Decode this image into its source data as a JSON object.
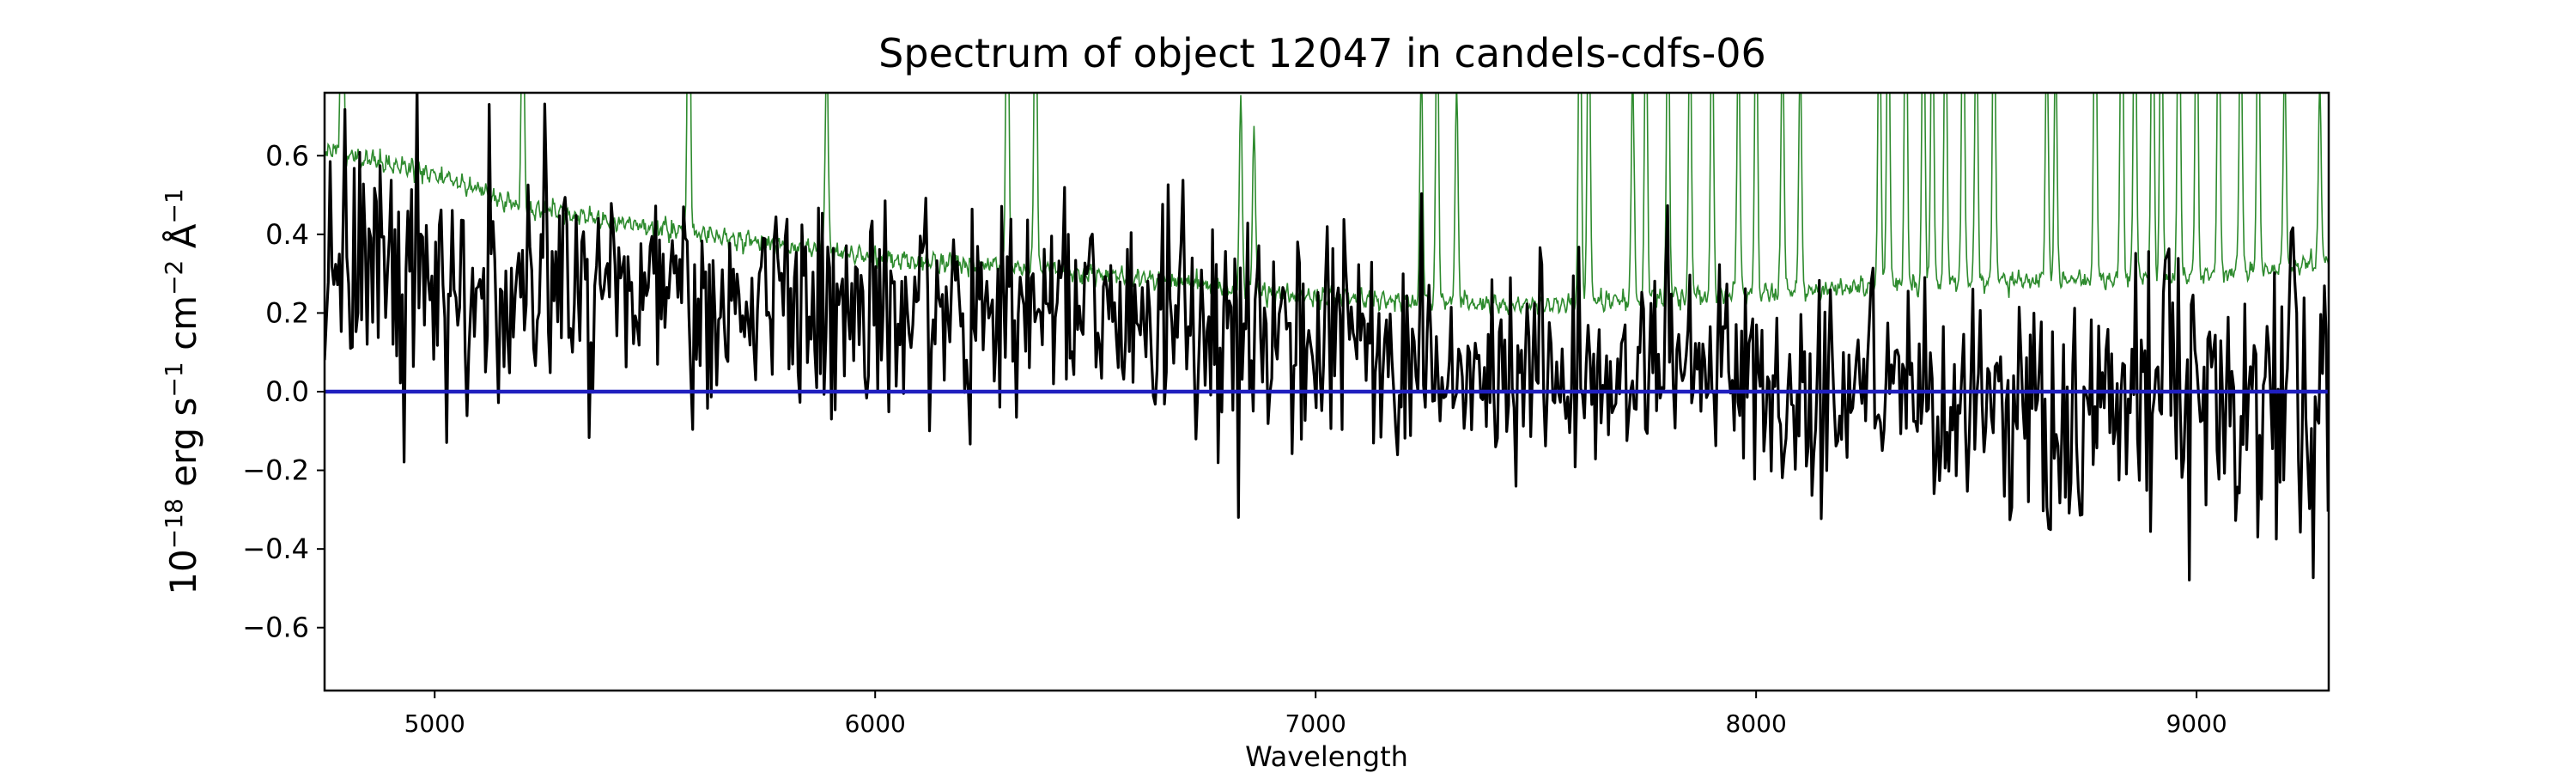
{
  "chart_data": {
    "type": "line",
    "title": "Spectrum of object 12047 in candels-cdfs-06",
    "xlabel": "Wavelength",
    "ylabel": {
      "base": "10",
      "exp": "−18",
      "unit_erg": " erg s",
      "exp_s": "−1",
      "unit_cm": " cm",
      "exp_cm": "−2",
      "unit_a": " Å",
      "exp_a": "−1"
    },
    "xlim": [
      4750,
      9300
    ],
    "ylim": [
      -0.76,
      0.76
    ],
    "xticks": [
      5000,
      6000,
      7000,
      8000,
      9000
    ],
    "xtick_labels": [
      "5000",
      "6000",
      "7000",
      "8000",
      "9000"
    ],
    "yticks": [
      -0.6,
      -0.4,
      -0.2,
      0.0,
      0.2,
      0.4,
      0.6
    ],
    "ytick_labels": [
      "−0.6",
      "−0.4",
      "−0.2",
      "0.0",
      "0.2",
      "0.4",
      "0.6"
    ],
    "grid": false,
    "colors": {
      "flux": "#000000",
      "error": "#2e8b2e",
      "zero": "#1f1fbf"
    },
    "series": [
      {
        "role": "flux",
        "seed": 12047,
        "trend": [
          [
            4750,
            0.32
          ],
          [
            5200,
            0.26
          ],
          [
            5800,
            0.21
          ],
          [
            6500,
            0.18
          ],
          [
            7000,
            0.15
          ],
          [
            7500,
            0.05
          ],
          [
            8000,
            0.02
          ],
          [
            8500,
            -0.02
          ],
          [
            9000,
            -0.02
          ],
          [
            9300,
            0.0
          ]
        ]
      },
      {
        "role": "error",
        "baseline": [
          [
            4750,
            0.62
          ],
          [
            5000,
            0.55
          ],
          [
            5200,
            0.47
          ],
          [
            5600,
            0.4
          ],
          [
            6000,
            0.34
          ],
          [
            6500,
            0.3
          ],
          [
            7000,
            0.24
          ],
          [
            7500,
            0.22
          ],
          [
            8000,
            0.25
          ],
          [
            8500,
            0.28
          ],
          [
            9000,
            0.29
          ],
          [
            9300,
            0.33
          ]
        ],
        "spikes": [
          [
            4790,
            0.7
          ],
          [
            5200,
            0.6
          ],
          [
            5577,
            0.95
          ],
          [
            5890,
            0.55
          ],
          [
            6300,
            0.9
          ],
          [
            6364,
            0.9
          ],
          [
            6830,
            0.48
          ],
          [
            6860,
            0.42
          ],
          [
            7240,
            0.6
          ],
          [
            7276,
            0.8
          ],
          [
            7320,
            0.55
          ],
          [
            7600,
            0.95
          ],
          [
            7620,
            0.9
          ],
          [
            7720,
            0.6
          ],
          [
            7750,
            0.8
          ],
          [
            7800,
            0.85
          ],
          [
            7850,
            0.75
          ],
          [
            7900,
            0.8
          ],
          [
            7960,
            0.7
          ],
          [
            8000,
            0.85
          ],
          [
            8060,
            0.7
          ],
          [
            8100,
            0.6
          ],
          [
            8280,
            0.8
          ],
          [
            8300,
            0.9
          ],
          [
            8340,
            0.95
          ],
          [
            8380,
            0.9
          ],
          [
            8400,
            0.85
          ],
          [
            8430,
            0.8
          ],
          [
            8470,
            0.9
          ],
          [
            8500,
            0.75
          ],
          [
            8540,
            0.85
          ],
          [
            8660,
            0.65
          ],
          [
            8680,
            0.6
          ],
          [
            8770,
            0.95
          ],
          [
            8830,
            0.95
          ],
          [
            8860,
            0.9
          ],
          [
            8900,
            0.95
          ],
          [
            8920,
            0.85
          ],
          [
            8960,
            0.95
          ],
          [
            9000,
            0.85
          ],
          [
            9050,
            0.8
          ],
          [
            9100,
            0.75
          ],
          [
            9140,
            0.8
          ],
          [
            9200,
            0.55
          ],
          [
            9280,
            0.45
          ]
        ]
      },
      {
        "role": "zero",
        "y": 0.0
      }
    ]
  }
}
